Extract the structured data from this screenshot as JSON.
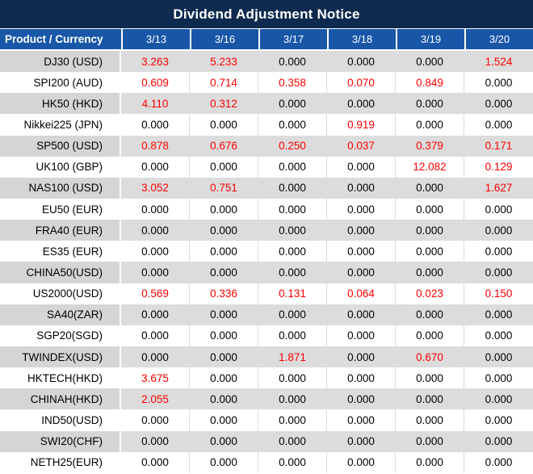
{
  "title": "Dividend Adjustment Notice",
  "colors": {
    "title_bg": "#0E2A4F",
    "header_bg": "#1857A8",
    "row_gray": "#DCDCDC",
    "label_gray": "#D5D5D5",
    "row_white": "#FFFFFF",
    "value_red": "#FE0000",
    "value_black": "#000000"
  },
  "table": {
    "columns": [
      "Product / Currency",
      "3/13",
      "3/16",
      "3/17",
      "3/18",
      "3/19",
      "3/20"
    ],
    "rows": [
      {
        "product": "DJ30 (USD)",
        "values": [
          "3.263",
          "5.233",
          "0.000",
          "0.000",
          "0.000",
          "1.524"
        ]
      },
      {
        "product": "SPI200 (AUD)",
        "values": [
          "0.609",
          "0.714",
          "0.358",
          "0.070",
          "0.849",
          "0.000"
        ]
      },
      {
        "product": "HK50 (HKD)",
        "values": [
          "4.110",
          "0.312",
          "0.000",
          "0.000",
          "0.000",
          "0.000"
        ]
      },
      {
        "product": "Nikkei225 (JPN)",
        "values": [
          "0.000",
          "0.000",
          "0.000",
          "0.919",
          "0.000",
          "0.000"
        ]
      },
      {
        "product": "SP500 (USD)",
        "values": [
          "0.878",
          "0.676",
          "0.250",
          "0.037",
          "0.379",
          "0.171"
        ]
      },
      {
        "product": "UK100 (GBP)",
        "values": [
          "0.000",
          "0.000",
          "0.000",
          "0.000",
          "12.082",
          "0.129"
        ]
      },
      {
        "product": "NAS100 (USD)",
        "values": [
          "3.052",
          "0.751",
          "0.000",
          "0.000",
          "0.000",
          "1.627"
        ]
      },
      {
        "product": "EU50 (EUR)",
        "values": [
          "0.000",
          "0.000",
          "0.000",
          "0.000",
          "0.000",
          "0.000"
        ]
      },
      {
        "product": "FRA40 (EUR)",
        "values": [
          "0.000",
          "0.000",
          "0.000",
          "0.000",
          "0.000",
          "0.000"
        ]
      },
      {
        "product": "ES35 (EUR)",
        "values": [
          "0.000",
          "0.000",
          "0.000",
          "0.000",
          "0.000",
          "0.000"
        ]
      },
      {
        "product": "CHINA50(USD)",
        "values": [
          "0.000",
          "0.000",
          "0.000",
          "0.000",
          "0.000",
          "0.000"
        ]
      },
      {
        "product": "US2000(USD)",
        "values": [
          "0.569",
          "0.336",
          "0.131",
          "0.064",
          "0.023",
          "0.150"
        ]
      },
      {
        "product": "SA40(ZAR)",
        "values": [
          "0.000",
          "0.000",
          "0.000",
          "0.000",
          "0.000",
          "0.000"
        ]
      },
      {
        "product": "SGP20(SGD)",
        "values": [
          "0.000",
          "0.000",
          "0.000",
          "0.000",
          "0.000",
          "0.000"
        ]
      },
      {
        "product": "TWINDEX(USD)",
        "values": [
          "0.000",
          "0.000",
          "1.871",
          "0.000",
          "0.670",
          "0.000"
        ]
      },
      {
        "product": "HKTECH(HKD)",
        "values": [
          "3.675",
          "0.000",
          "0.000",
          "0.000",
          "0.000",
          "0.000"
        ]
      },
      {
        "product": "CHINAH(HKD)",
        "values": [
          "2.055",
          "0.000",
          "0.000",
          "0.000",
          "0.000",
          "0.000"
        ]
      },
      {
        "product": "IND50(USD)",
        "values": [
          "0.000",
          "0.000",
          "0.000",
          "0.000",
          "0.000",
          "0.000"
        ]
      },
      {
        "product": "SWI20(CHF)",
        "values": [
          "0.000",
          "0.000",
          "0.000",
          "0.000",
          "0.000",
          "0.000"
        ]
      },
      {
        "product": "NETH25(EUR)",
        "values": [
          "0.000",
          "0.000",
          "0.000",
          "0.000",
          "0.000",
          "0.000"
        ]
      }
    ]
  }
}
